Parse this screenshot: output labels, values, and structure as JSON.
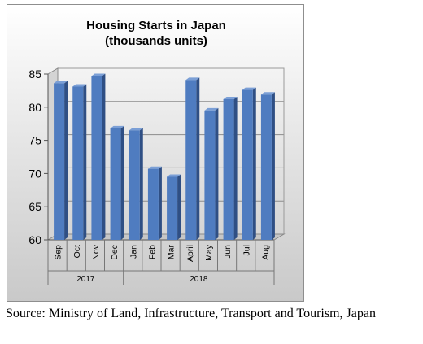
{
  "chart_data": {
    "type": "bar",
    "title": "Housing Starts in Japan",
    "subtitle": "(thousands units)",
    "categories": [
      "Sep",
      "Oct",
      "Nov",
      "Dec",
      "Jan",
      "Feb",
      "Mar",
      "April",
      "May",
      "Jun",
      "Jul",
      "Aug"
    ],
    "year_groups": [
      {
        "label": "2017",
        "categories": [
          "Sep",
          "Oct",
          "Nov",
          "Dec"
        ]
      },
      {
        "label": "2018",
        "categories": [
          "Jan",
          "Feb",
          "Mar",
          "April",
          "May",
          "Jun",
          "Jul",
          "Aug"
        ]
      }
    ],
    "values": [
      83.6,
      83.1,
      84.7,
      76.8,
      76.5,
      70.7,
      69.5,
      84.1,
      79.5,
      81.2,
      82.6,
      81.9
    ],
    "ylim": [
      60,
      85
    ],
    "yticks": [
      "60",
      "65",
      "70",
      "75",
      "80",
      "85"
    ],
    "grid": true,
    "legend": "none",
    "bar_color": "#4f7cc0",
    "bar_side_color": "#2f4f84",
    "bar_top_color": "#7b9fd6"
  },
  "source": "Source: Ministry of Land, Infrastructure, Transport and Tourism, Japan"
}
